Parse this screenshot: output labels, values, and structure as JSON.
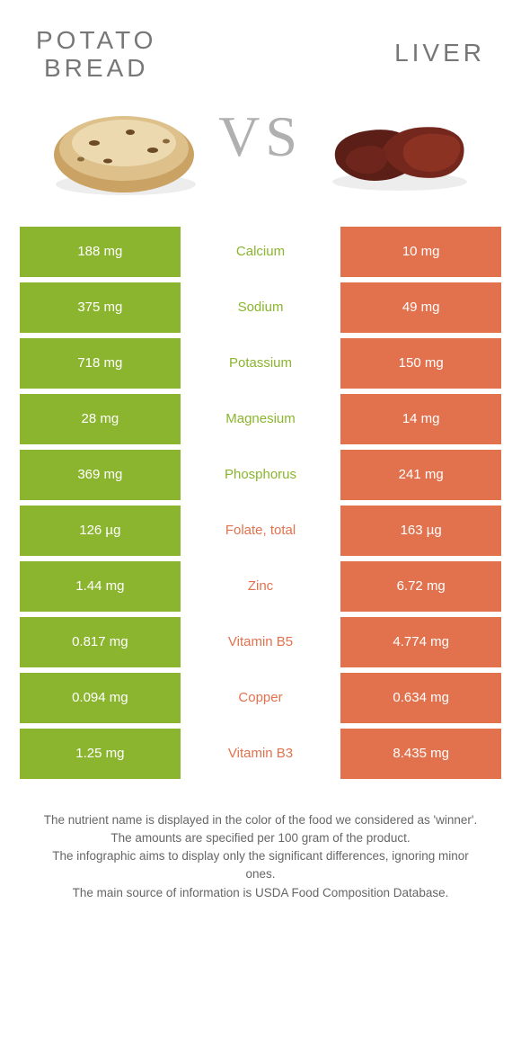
{
  "colors": {
    "green": "#8bb52e",
    "orange": "#e2724e",
    "title": "#777777",
    "vs": "#b0b0b0",
    "footer": "#666666",
    "bg": "#ffffff"
  },
  "header": {
    "left_title": "POTATO\nBREAD",
    "right_title": "LIVER",
    "vs": "VS"
  },
  "table": {
    "rows": [
      {
        "left": "188 mg",
        "label": "Calcium",
        "right": "10 mg",
        "winner": "left"
      },
      {
        "left": "375 mg",
        "label": "Sodium",
        "right": "49 mg",
        "winner": "left"
      },
      {
        "left": "718 mg",
        "label": "Potassium",
        "right": "150 mg",
        "winner": "left"
      },
      {
        "left": "28 mg",
        "label": "Magnesium",
        "right": "14 mg",
        "winner": "left"
      },
      {
        "left": "369 mg",
        "label": "Phosphorus",
        "right": "241 mg",
        "winner": "left"
      },
      {
        "left": "126 µg",
        "label": "Folate, total",
        "right": "163 µg",
        "winner": "right"
      },
      {
        "left": "1.44 mg",
        "label": "Zinc",
        "right": "6.72 mg",
        "winner": "right"
      },
      {
        "left": "0.817 mg",
        "label": "Vitamin B5",
        "right": "4.774 mg",
        "winner": "right"
      },
      {
        "left": "0.094 mg",
        "label": "Copper",
        "right": "0.634 mg",
        "winner": "right"
      },
      {
        "left": "1.25 mg",
        "label": "Vitamin B3",
        "right": "8.435 mg",
        "winner": "right"
      }
    ]
  },
  "footer": {
    "lines": [
      "The nutrient name is displayed in the color of the food we considered as 'winner'.",
      "The amounts are specified per 100 gram of the product.",
      "The infographic aims to display only the significant differences, ignoring minor ones.",
      "The main source of information is USDA Food Composition Database."
    ]
  }
}
